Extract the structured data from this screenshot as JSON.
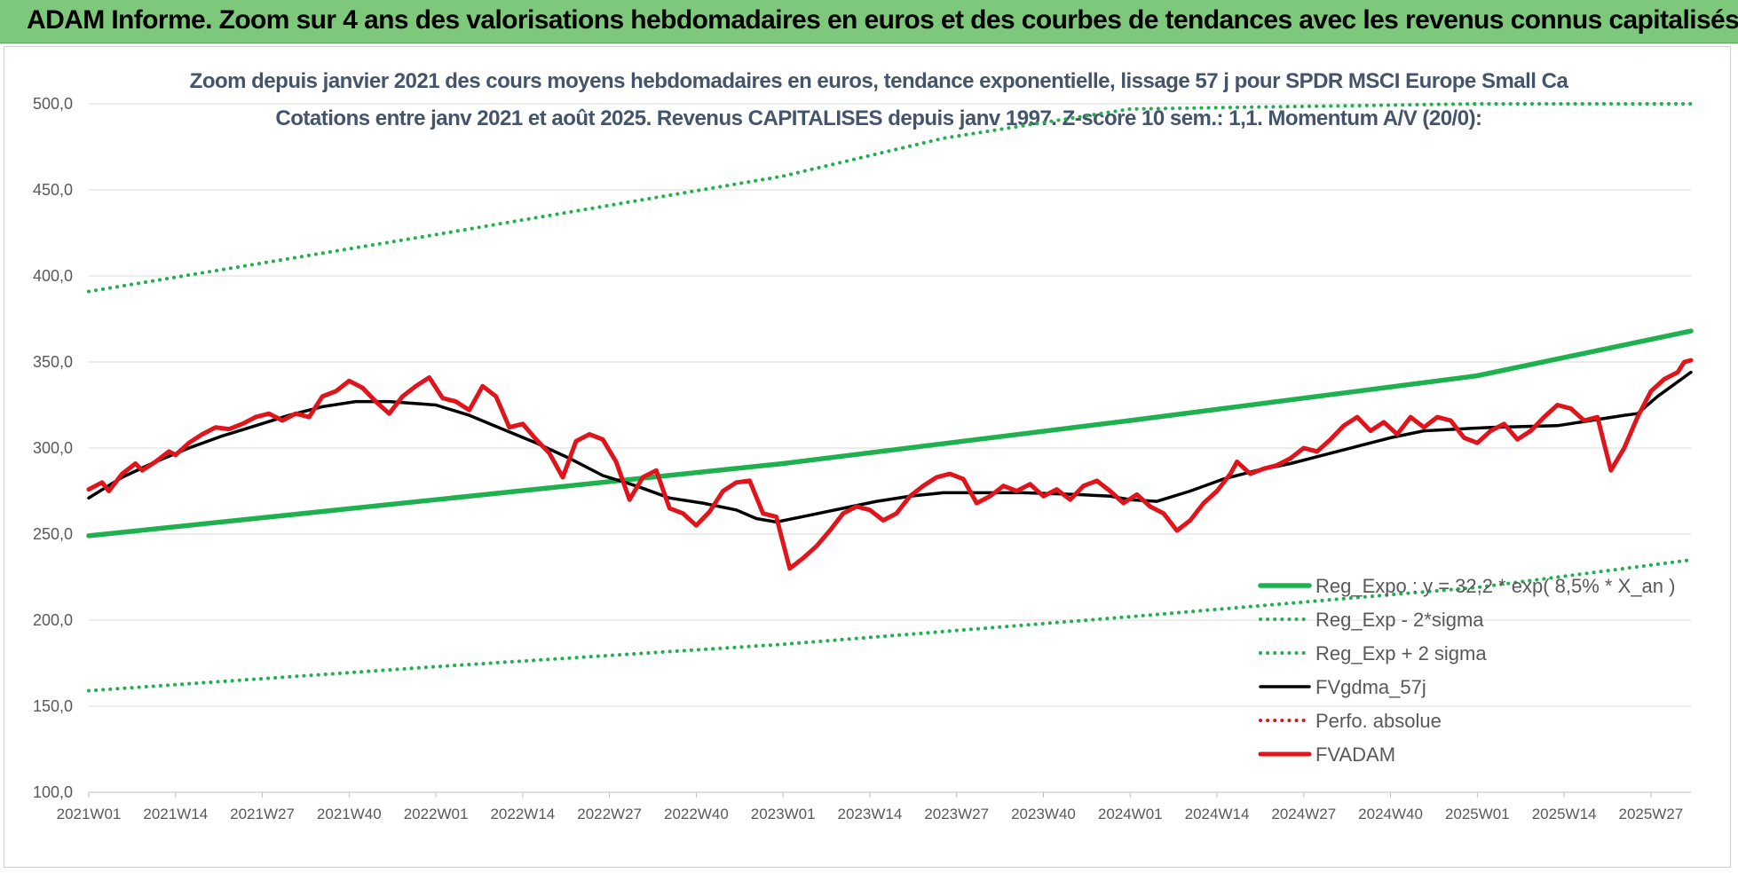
{
  "banner": {
    "title": "ADAM Informe. Zoom sur 4 ans des valorisations hebdomadaires en euros et des courbes de tendances avec les revenus connus capitalisés"
  },
  "chart_data": {
    "type": "line",
    "title": "Zoom depuis janvier 2021 des cours moyens hebdomadaires en euros, tendance exponentielle, lissage 57 j pour SPDR MSCI Europe Small Ca",
    "subtitle": "Cotations entre janv 2021 et août 2025. Revenus CAPITALISES depuis janv 1997. Z-score 10 sem.: 1,1. Momentum A/V (20/0):",
    "xlabel": "",
    "ylabel": "",
    "ylim": [
      100,
      500
    ],
    "y_ticks": [
      "100,0",
      "150,0",
      "200,0",
      "250,0",
      "300,0",
      "350,0",
      "400,0",
      "450,0",
      "500,0"
    ],
    "x_tick_labels": [
      "2021W01",
      "2021W14",
      "2021W27",
      "2021W40",
      "2022W01",
      "2022W14",
      "2022W27",
      "2022W40",
      "2023W01",
      "2023W14",
      "2023W27",
      "2023W40",
      "2024W01",
      "2024W14",
      "2024W27",
      "2024W40",
      "2025W01",
      "2025W14",
      "2025W27"
    ],
    "x_index_range": [
      0,
      240
    ],
    "grid": true,
    "legend_position": "bottom-right",
    "series": [
      {
        "name": "Reg_Expo : y = 32,2 * exp( 8,5% *  X_an )",
        "color": "#1fb050",
        "style": "solid",
        "points": [
          [
            0,
            249
          ],
          [
            52,
            270
          ],
          [
            104,
            291
          ],
          [
            156,
            316
          ],
          [
            208,
            342
          ],
          [
            240,
            368
          ]
        ]
      },
      {
        "name": "Reg_Exp - 2*sigma",
        "color": "#1fb050",
        "style": "dotted",
        "points": [
          [
            0,
            159
          ],
          [
            52,
            173
          ],
          [
            104,
            186
          ],
          [
            156,
            202
          ],
          [
            208,
            219
          ],
          [
            240,
            235
          ]
        ]
      },
      {
        "name": "Reg_Exp + 2 sigma",
        "color": "#1fb050",
        "style": "dotted",
        "points": [
          [
            0,
            391
          ],
          [
            52,
            424
          ],
          [
            104,
            458
          ],
          [
            128,
            480
          ],
          [
            156,
            497
          ],
          [
            208,
            500
          ],
          [
            240,
            500
          ]
        ]
      },
      {
        "name": "FVgdma_57j",
        "color": "#000000",
        "style": "solid",
        "points": [
          [
            0,
            271
          ],
          [
            5,
            283
          ],
          [
            10,
            292
          ],
          [
            15,
            300
          ],
          [
            20,
            307
          ],
          [
            25,
            313
          ],
          [
            30,
            319
          ],
          [
            35,
            324
          ],
          [
            40,
            327
          ],
          [
            45,
            327
          ],
          [
            52,
            325
          ],
          [
            57,
            319
          ],
          [
            62,
            311
          ],
          [
            67,
            303
          ],
          [
            72,
            294
          ],
          [
            77,
            284
          ],
          [
            82,
            278
          ],
          [
            87,
            271
          ],
          [
            92,
            268
          ],
          [
            97,
            264
          ],
          [
            100,
            259
          ],
          [
            103,
            257
          ],
          [
            108,
            261
          ],
          [
            113,
            265
          ],
          [
            118,
            269
          ],
          [
            123,
            272
          ],
          [
            128,
            274
          ],
          [
            135,
            274
          ],
          [
            140,
            274
          ],
          [
            148,
            273
          ],
          [
            153,
            272
          ],
          [
            156,
            270
          ],
          [
            160,
            269
          ],
          [
            165,
            275
          ],
          [
            170,
            282
          ],
          [
            175,
            287
          ],
          [
            180,
            291
          ],
          [
            185,
            296
          ],
          [
            190,
            301
          ],
          [
            195,
            306
          ],
          [
            200,
            310
          ],
          [
            210,
            312
          ],
          [
            220,
            313
          ],
          [
            225,
            316
          ],
          [
            230,
            319
          ],
          [
            232,
            320
          ],
          [
            235,
            330
          ],
          [
            240,
            344
          ]
        ]
      },
      {
        "name": "Perfo. absolue",
        "color": "#e0141b",
        "style": "dotted",
        "points": []
      },
      {
        "name": "FVADAM",
        "color": "#e0141b",
        "style": "solid",
        "points": [
          [
            0,
            276
          ],
          [
            2,
            280
          ],
          [
            3,
            275
          ],
          [
            5,
            285
          ],
          [
            7,
            291
          ],
          [
            8,
            287
          ],
          [
            10,
            292
          ],
          [
            12,
            298
          ],
          [
            13,
            296
          ],
          [
            15,
            303
          ],
          [
            17,
            308
          ],
          [
            19,
            312
          ],
          [
            21,
            311
          ],
          [
            23,
            314
          ],
          [
            25,
            318
          ],
          [
            27,
            320
          ],
          [
            29,
            316
          ],
          [
            31,
            320
          ],
          [
            33,
            318
          ],
          [
            35,
            330
          ],
          [
            37,
            333
          ],
          [
            39,
            339
          ],
          [
            41,
            335
          ],
          [
            43,
            327
          ],
          [
            45,
            320
          ],
          [
            47,
            330
          ],
          [
            49,
            336
          ],
          [
            51,
            341
          ],
          [
            53,
            329
          ],
          [
            55,
            327
          ],
          [
            57,
            322
          ],
          [
            59,
            336
          ],
          [
            61,
            330
          ],
          [
            63,
            312
          ],
          [
            65,
            314
          ],
          [
            67,
            305
          ],
          [
            69,
            297
          ],
          [
            71,
            283
          ],
          [
            73,
            304
          ],
          [
            75,
            308
          ],
          [
            77,
            305
          ],
          [
            79,
            292
          ],
          [
            81,
            270
          ],
          [
            83,
            283
          ],
          [
            85,
            287
          ],
          [
            87,
            265
          ],
          [
            89,
            262
          ],
          [
            91,
            255
          ],
          [
            93,
            263
          ],
          [
            95,
            275
          ],
          [
            97,
            280
          ],
          [
            99,
            281
          ],
          [
            101,
            262
          ],
          [
            103,
            260
          ],
          [
            105,
            230
          ],
          [
            107,
            236
          ],
          [
            109,
            243
          ],
          [
            111,
            252
          ],
          [
            113,
            262
          ],
          [
            115,
            266
          ],
          [
            117,
            264
          ],
          [
            119,
            258
          ],
          [
            121,
            262
          ],
          [
            123,
            272
          ],
          [
            125,
            278
          ],
          [
            127,
            283
          ],
          [
            129,
            285
          ],
          [
            131,
            282
          ],
          [
            133,
            268
          ],
          [
            135,
            272
          ],
          [
            137,
            278
          ],
          [
            139,
            275
          ],
          [
            141,
            279
          ],
          [
            143,
            272
          ],
          [
            145,
            276
          ],
          [
            147,
            270
          ],
          [
            149,
            278
          ],
          [
            151,
            281
          ],
          [
            153,
            275
          ],
          [
            155,
            268
          ],
          [
            157,
            273
          ],
          [
            159,
            266
          ],
          [
            161,
            262
          ],
          [
            163,
            252
          ],
          [
            165,
            258
          ],
          [
            167,
            268
          ],
          [
            169,
            275
          ],
          [
            171,
            285
          ],
          [
            172,
            292
          ],
          [
            174,
            285
          ],
          [
            176,
            288
          ],
          [
            178,
            290
          ],
          [
            180,
            294
          ],
          [
            182,
            300
          ],
          [
            184,
            298
          ],
          [
            186,
            305
          ],
          [
            188,
            313
          ],
          [
            190,
            318
          ],
          [
            192,
            310
          ],
          [
            194,
            315
          ],
          [
            196,
            308
          ],
          [
            198,
            318
          ],
          [
            200,
            312
          ],
          [
            202,
            318
          ],
          [
            204,
            316
          ],
          [
            206,
            306
          ],
          [
            208,
            303
          ],
          [
            210,
            310
          ],
          [
            212,
            314
          ],
          [
            214,
            305
          ],
          [
            216,
            310
          ],
          [
            218,
            318
          ],
          [
            220,
            325
          ],
          [
            222,
            323
          ],
          [
            224,
            316
          ],
          [
            226,
            318
          ],
          [
            228,
            287
          ],
          [
            230,
            300
          ],
          [
            232,
            318
          ],
          [
            234,
            333
          ],
          [
            236,
            340
          ],
          [
            238,
            344
          ],
          [
            239,
            350
          ],
          [
            240,
            351
          ]
        ]
      }
    ]
  }
}
